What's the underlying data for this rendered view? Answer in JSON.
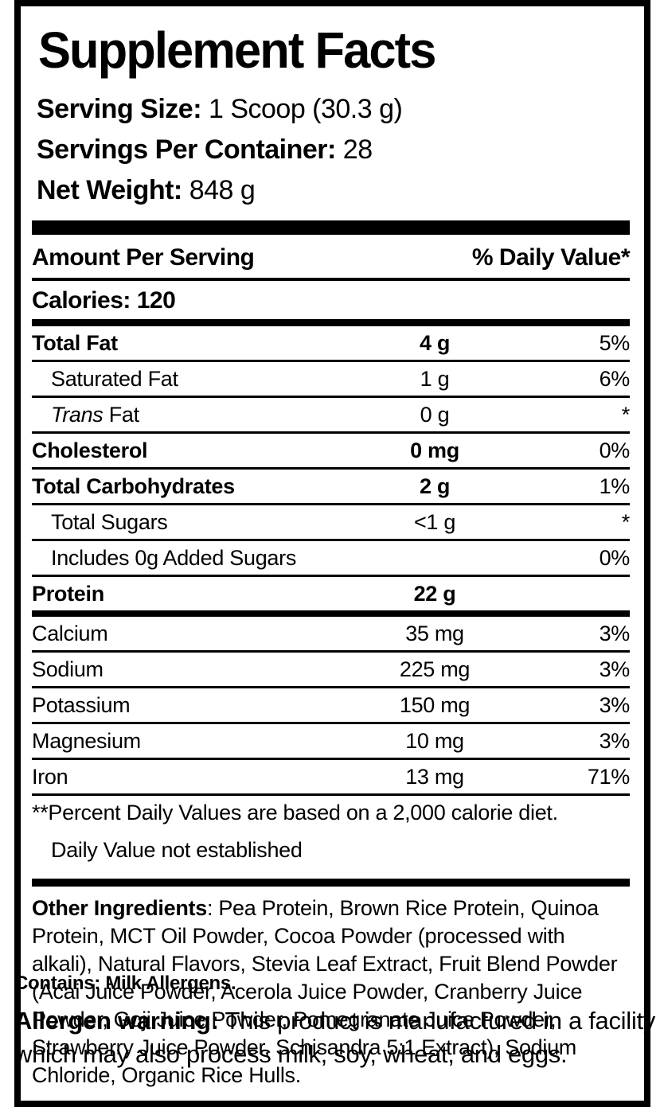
{
  "label": {
    "title": "Supplement Facts",
    "serving_info": [
      {
        "label": "Serving Size:",
        "value": " 1 Scoop (30.3 g)"
      },
      {
        "label": "Servings Per Container:",
        "value": " 28"
      },
      {
        "label": "Net Weight:",
        "value": " 848 g"
      }
    ],
    "table": {
      "header_left": "Amount Per Serving",
      "header_right": "% Daily Value*",
      "calories": "Calories: 120",
      "rows": [
        {
          "name": "Total Fat",
          "amount": "4 g",
          "dv": "5%",
          "bold": true,
          "amount_bold": true,
          "indent": false,
          "thick_bottom": false
        },
        {
          "name": "Saturated Fat",
          "amount": "1 g",
          "dv": "6%",
          "bold": false,
          "amount_bold": false,
          "indent": true,
          "thick_bottom": false
        },
        {
          "name_italic": "Trans",
          "name": " Fat",
          "amount": "0 g",
          "dv": "*",
          "bold": false,
          "amount_bold": false,
          "indent": true,
          "thick_bottom": false
        },
        {
          "name": "Cholesterol",
          "amount": "0 mg",
          "dv": "0%",
          "bold": true,
          "amount_bold": true,
          "indent": false,
          "thick_bottom": false
        },
        {
          "name": "Total Carbohydrates",
          "amount": "2 g",
          "dv": "1%",
          "bold": true,
          "amount_bold": true,
          "indent": false,
          "thick_bottom": false
        },
        {
          "name": "Total Sugars",
          "amount": "<1 g",
          "dv": "*",
          "bold": false,
          "amount_bold": false,
          "indent": true,
          "thick_bottom": false
        },
        {
          "name": "Includes 0g Added Sugars",
          "amount": "",
          "dv": "0%",
          "bold": false,
          "amount_bold": false,
          "indent": true,
          "thick_bottom": false
        },
        {
          "name": "Protein",
          "amount": "22 g",
          "dv": "",
          "bold": true,
          "amount_bold": true,
          "indent": false,
          "thick_bottom": true
        },
        {
          "name": "Calcium",
          "amount": "35 mg",
          "dv": "3%",
          "bold": false,
          "amount_bold": false,
          "indent": false,
          "thick_bottom": false
        },
        {
          "name": "Sodium",
          "amount": "225 mg",
          "dv": "3%",
          "bold": false,
          "amount_bold": false,
          "indent": false,
          "thick_bottom": false
        },
        {
          "name": "Potassium",
          "amount": "150 mg",
          "dv": "3%",
          "bold": false,
          "amount_bold": false,
          "indent": false,
          "thick_bottom": false
        },
        {
          "name": "Magnesium",
          "amount": "10 mg",
          "dv": "3%",
          "bold": false,
          "amount_bold": false,
          "indent": false,
          "thick_bottom": false
        },
        {
          "name": "Iron",
          "amount": "13 mg",
          "dv": "71%",
          "bold": false,
          "amount_bold": false,
          "indent": false,
          "thick_bottom": false
        }
      ],
      "footnotes": [
        "**Percent Daily Values are based on a 2,000 calorie diet.",
        "Daily Value not established"
      ]
    },
    "other_ingredients": {
      "label": "Other Ingredients",
      "text": ": Pea Protein, Brown Rice Protein, Quinoa Protein, MCT Oil Powder, Cocoa Powder (processed with alkali), Natural Flavors, Stevia Leaf Extract, Fruit Blend Powder (Acai Juice Powder, Acerola Juice Powder, Cranberry Juice Powder, Goji Juice Powder, Pomegranate Juice Powder, Strawberry Juice Powder, Schisandra 5:1 Extract), Sodium Chloride, Organic Rice Hulls."
    },
    "contains": "Contains: Milk Allergens.",
    "allergen_warning": {
      "label": "Allergen warning:",
      "text": " This product is manufactured in a facility which may also process milk, soy, wheat, and eggs."
    },
    "colors": {
      "text": "#000000",
      "background": "#ffffff"
    }
  }
}
